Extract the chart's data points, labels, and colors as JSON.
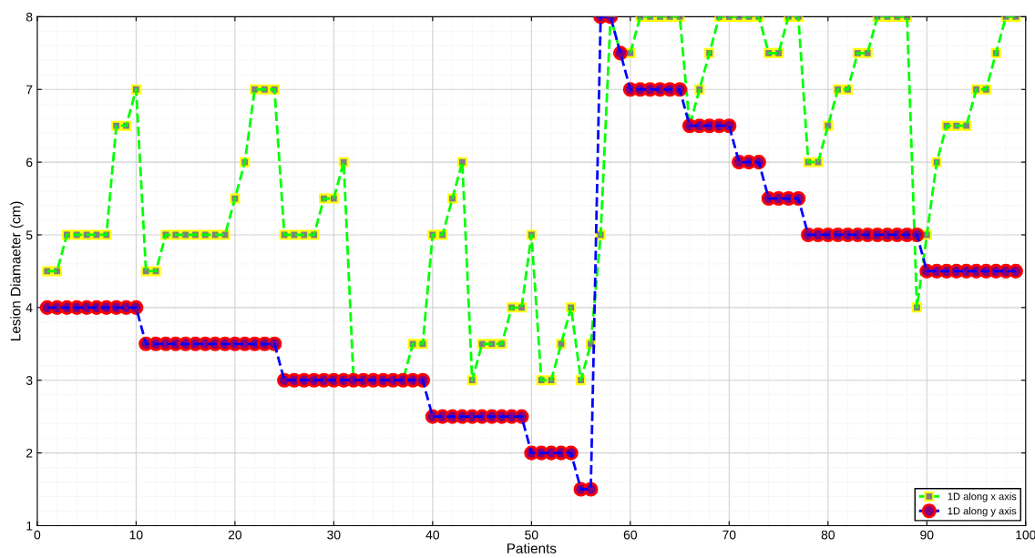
{
  "chart_data": {
    "type": "line",
    "xlabel": "Patients",
    "ylabel": "Lesion Diamaeter (cm)",
    "x": [
      1,
      2,
      3,
      4,
      5,
      6,
      7,
      8,
      9,
      10,
      11,
      12,
      13,
      14,
      15,
      16,
      17,
      18,
      19,
      20,
      21,
      22,
      23,
      24,
      25,
      26,
      27,
      28,
      29,
      30,
      31,
      32,
      33,
      34,
      35,
      36,
      37,
      38,
      39,
      40,
      41,
      42,
      43,
      44,
      45,
      46,
      47,
      48,
      49,
      50,
      51,
      52,
      53,
      54,
      55,
      56,
      57,
      58,
      59,
      60,
      61,
      62,
      63,
      64,
      65,
      66,
      67,
      68,
      69,
      70,
      71,
      72,
      73,
      74,
      75,
      76,
      77,
      78,
      79,
      80,
      81,
      82,
      83,
      84,
      85,
      86,
      87,
      88,
      89,
      90,
      91,
      92,
      93,
      94,
      95,
      96,
      97,
      98,
      99
    ],
    "series": [
      {
        "name": "1D along x axis",
        "color": "#00ff00",
        "marker": "square",
        "values": [
          4.5,
          4.5,
          5,
          5,
          5,
          5,
          5,
          6.5,
          6.5,
          7,
          4.5,
          4.5,
          5,
          5,
          5,
          5,
          5,
          5,
          5,
          5.5,
          6,
          7,
          7,
          7,
          5,
          5,
          5,
          5,
          5.5,
          5.5,
          6,
          3,
          3,
          3,
          3,
          3,
          3,
          3.5,
          3.5,
          5,
          5,
          5.5,
          6,
          3,
          3.5,
          3.5,
          3.5,
          4,
          4,
          5,
          3,
          3,
          3.5,
          4,
          3,
          3.5,
          5,
          8,
          7.5,
          7.5,
          8,
          8,
          8,
          8,
          8,
          6.5,
          7,
          7.5,
          8,
          8,
          8,
          8,
          8,
          7.5,
          7.5,
          8,
          8,
          6,
          6,
          6.5,
          7,
          7,
          7.5,
          7.5,
          8,
          8,
          8,
          8,
          4,
          5,
          6,
          6.5,
          6.5,
          6.5,
          7,
          7,
          7.5,
          8,
          8
        ]
      },
      {
        "name": "1D along y axis",
        "color": "#0000ff",
        "marker": "circle",
        "values": [
          4,
          4,
          4,
          4,
          4,
          4,
          4,
          4,
          4,
          4,
          3.5,
          3.5,
          3.5,
          3.5,
          3.5,
          3.5,
          3.5,
          3.5,
          3.5,
          3.5,
          3.5,
          3.5,
          3.5,
          3.5,
          3,
          3,
          3,
          3,
          3,
          3,
          3,
          3,
          3,
          3,
          3,
          3,
          3,
          3,
          3,
          2.5,
          2.5,
          2.5,
          2.5,
          2.5,
          2.5,
          2.5,
          2.5,
          2.5,
          2.5,
          2,
          2,
          2,
          2,
          2,
          1.5,
          1.5,
          8,
          8,
          7.5,
          7,
          7,
          7,
          7,
          7,
          7,
          6.5,
          6.5,
          6.5,
          6.5,
          6.5,
          6,
          6,
          6,
          5.5,
          5.5,
          5.5,
          5.5,
          5,
          5,
          5,
          5,
          5,
          5,
          5,
          5,
          5,
          5,
          5,
          5,
          4.5,
          4.5,
          4.5,
          4.5,
          4.5,
          4.5,
          4.5,
          4.5,
          4.5,
          4.5
        ]
      }
    ],
    "xlim": [
      0,
      100
    ],
    "xticks": [
      0,
      10,
      20,
      30,
      40,
      50,
      60,
      70,
      80,
      90,
      100
    ],
    "ylim": [
      1,
      8
    ],
    "yticks": [
      1,
      2,
      3,
      4,
      5,
      6,
      7,
      8
    ],
    "grid": true,
    "legend": "bottom right",
    "line_style": "dashed"
  }
}
